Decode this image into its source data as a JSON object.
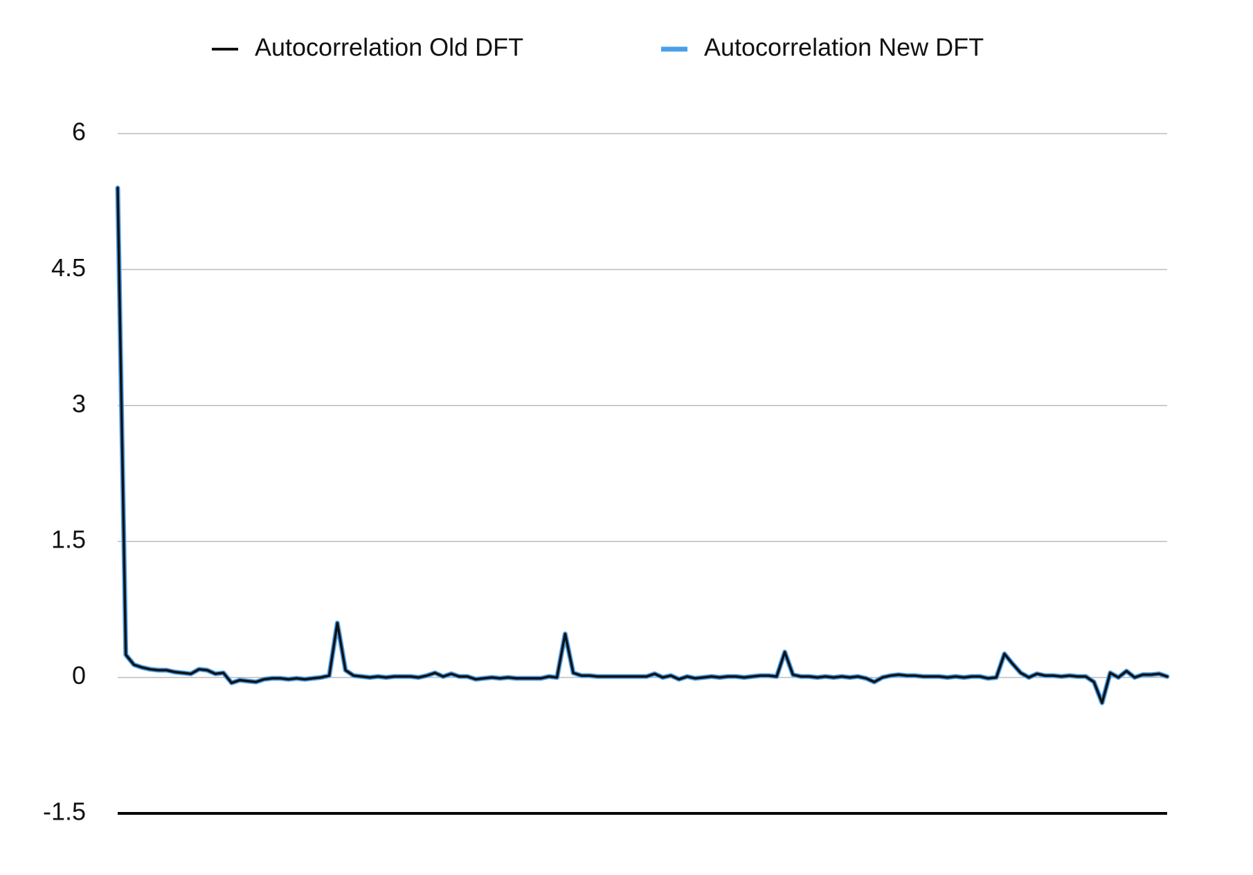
{
  "chart_data": {
    "type": "line",
    "series": [
      {
        "name": "Autocorrelation Old DFT",
        "color": "#111111",
        "values": [
          5.4,
          0.25,
          0.14,
          0.11,
          0.09,
          0.08,
          0.08,
          0.06,
          0.05,
          0.04,
          0.09,
          0.08,
          0.04,
          0.05,
          -0.06,
          -0.03,
          -0.04,
          -0.05,
          -0.02,
          -0.01,
          -0.01,
          -0.02,
          -0.01,
          -0.02,
          -0.01,
          0,
          0.02,
          0.6,
          0.08,
          0.02,
          0.01,
          0,
          0.01,
          0,
          0.01,
          0.01,
          0.01,
          0,
          0.02,
          0.05,
          0.01,
          0.04,
          0.01,
          0.01,
          -0.02,
          -0.01,
          0,
          -0.01,
          0,
          -0.01,
          -0.01,
          -0.01,
          -0.01,
          0.01,
          0,
          0.48,
          0.05,
          0.02,
          0.02,
          0.01,
          0.01,
          0.01,
          0.01,
          0.01,
          0.01,
          0.01,
          0.04,
          0,
          0.02,
          -0.02,
          0.01,
          -0.01,
          0,
          0.01,
          0,
          0.01,
          0.01,
          0,
          0.01,
          0.02,
          0.02,
          0.01,
          0.28,
          0.03,
          0.01,
          0.01,
          0,
          0.01,
          0,
          0.01,
          0,
          0.01,
          -0.01,
          -0.05,
          0,
          0.02,
          0.03,
          0.02,
          0.02,
          0.01,
          0.01,
          0.01,
          0,
          0.01,
          0,
          0.01,
          0.01,
          -0.01,
          0,
          0.26,
          0.15,
          0.05,
          0,
          0.04,
          0.02,
          0.02,
          0.01,
          0.02,
          0.01,
          0.01,
          -0.05,
          -0.28,
          0.05,
          0,
          0.07,
          0,
          0.03,
          0.03,
          0.04,
          0.01
        ]
      },
      {
        "name": "Autocorrelation New DFT",
        "color": "#4a9ee8",
        "values": [
          5.4,
          0.25,
          0.14,
          0.11,
          0.09,
          0.08,
          0.08,
          0.06,
          0.05,
          0.04,
          0.09,
          0.08,
          0.04,
          0.05,
          -0.06,
          -0.03,
          -0.04,
          -0.05,
          -0.02,
          -0.01,
          -0.01,
          -0.02,
          -0.01,
          -0.02,
          -0.01,
          0,
          0.02,
          0.6,
          0.08,
          0.02,
          0.01,
          0,
          0.01,
          0,
          0.01,
          0.01,
          0.01,
          0,
          0.02,
          0.05,
          0.01,
          0.04,
          0.01,
          0.01,
          -0.02,
          -0.01,
          0,
          -0.01,
          0,
          -0.01,
          -0.01,
          -0.01,
          -0.01,
          0.01,
          0,
          0.48,
          0.05,
          0.02,
          0.02,
          0.01,
          0.01,
          0.01,
          0.01,
          0.01,
          0.01,
          0.01,
          0.04,
          0,
          0.02,
          -0.02,
          0.01,
          -0.01,
          0,
          0.01,
          0,
          0.01,
          0.01,
          0,
          0.01,
          0.02,
          0.02,
          0.01,
          0.28,
          0.03,
          0.01,
          0.01,
          0,
          0.01,
          0,
          0.01,
          0,
          0.01,
          -0.01,
          -0.05,
          0,
          0.02,
          0.03,
          0.02,
          0.02,
          0.01,
          0.01,
          0.01,
          0,
          0.01,
          0,
          0.01,
          0.01,
          -0.01,
          0,
          0.26,
          0.15,
          0.05,
          0,
          0.04,
          0.02,
          0.02,
          0.01,
          0.02,
          0.01,
          0.01,
          -0.05,
          -0.28,
          0.05,
          0,
          0.07,
          0,
          0.03,
          0.03,
          0.04,
          0.01
        ]
      }
    ],
    "ylim": [
      -1.5,
      6
    ],
    "yticks": [
      -1.5,
      0,
      1.5,
      3,
      4.5,
      6
    ],
    "grid": true,
    "legend": "top"
  }
}
